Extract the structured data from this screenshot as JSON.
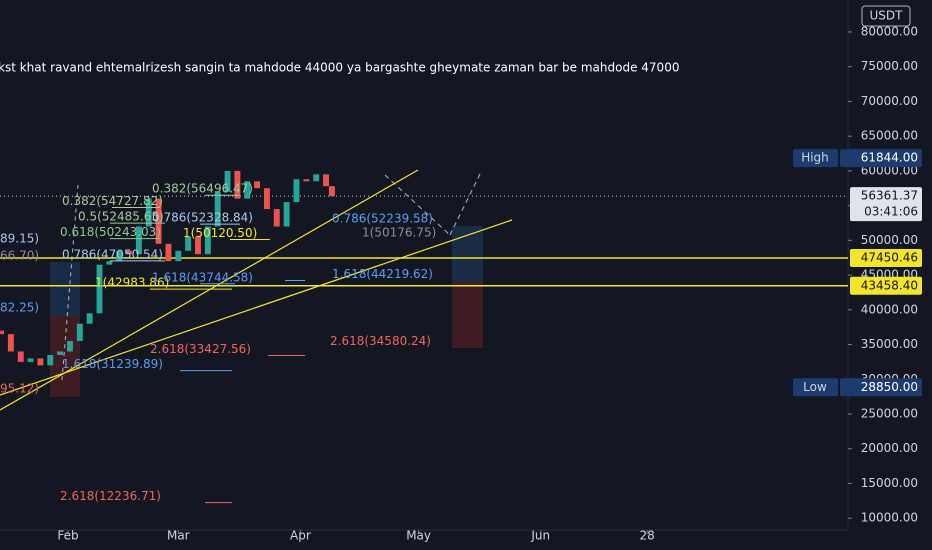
{
  "chart_data": {
    "type": "candlestick",
    "title": "kst khat ravand ehtemalrizesh sangin ta mahdode 44000 ya bargashte gheymate zaman bar be mahdode 47000",
    "currency": "USDT",
    "x": [
      15,
      17.5,
      20,
      22.5,
      25,
      27.5,
      30,
      32.5,
      35,
      37.5,
      40,
      42.5,
      45,
      47.5,
      50,
      52.5,
      55,
      57.5,
      60,
      62.5,
      65,
      67.5,
      70,
      72.5,
      75,
      77.5,
      80,
      82.5,
      85,
      87.5,
      90,
      92.5,
      95,
      97.5,
      99
    ],
    "open": [
      37000,
      36500,
      34000,
      32500,
      33000,
      32000,
      33500,
      34000,
      35500,
      38000,
      39500,
      46500,
      47000,
      48500,
      48000,
      52000,
      56000,
      49500,
      47000,
      48500,
      50500,
      48000,
      52000,
      57000,
      60000,
      56000,
      58500,
      57500,
      54500,
      52000,
      55500,
      58800,
      58500,
      59500,
      57800
    ],
    "high": {
      "label": "High",
      "value": 61844,
      "value_label": "61844.00"
    },
    "low": {
      "label": "Low",
      "value": 28850,
      "value_label": "28850.00"
    },
    "close": [
      36500,
      34000,
      32500,
      33000,
      32000,
      33500,
      34000,
      35500,
      38000,
      39500,
      46500,
      47000,
      48500,
      48000,
      52000,
      56000,
      49500,
      47000,
      48500,
      50500,
      48000,
      52000,
      57000,
      60000,
      56000,
      58500,
      57500,
      54500,
      52000,
      55500,
      58800,
      58500,
      59500,
      57800,
      56361.37
    ],
    "up_color": "#26a69a",
    "down_color": "#ef5350",
    "xlim": [
      14.74,
      230
    ],
    "ylim": [
      8300,
      84600
    ],
    "xticks": [
      {
        "value": 32,
        "label": "Feb"
      },
      {
        "value": 60,
        "label": "Mar"
      },
      {
        "value": 91,
        "label": "Apr"
      },
      {
        "value": 121,
        "label": "May"
      },
      {
        "value": 152,
        "label": "Jun"
      },
      {
        "value": 179,
        "label": "28"
      }
    ],
    "yticks": [
      {
        "value": 10000,
        "label": "10000.00"
      },
      {
        "value": 15000,
        "label": "15000.00"
      },
      {
        "value": 20000,
        "label": "20000.00"
      },
      {
        "value": 25000,
        "label": "25000.00"
      },
      {
        "value": 30000,
        "label": "30000.00"
      },
      {
        "value": 35000,
        "label": "35000.00"
      },
      {
        "value": 40000,
        "label": "40000.00"
      },
      {
        "value": 45000,
        "label": "45000.00"
      },
      {
        "value": 50000,
        "label": "50000.00"
      },
      {
        "value": 55000,
        "label": "55000.00"
      },
      {
        "value": 60000,
        "label": "60000.00"
      },
      {
        "value": 65000,
        "label": "65000.00"
      },
      {
        "value": 70000,
        "label": "70000.00"
      },
      {
        "value": 75000,
        "label": "75000.00"
      },
      {
        "value": 80000,
        "label": "80000.00"
      }
    ],
    "current": {
      "value": 56361.37,
      "value_label": "56361.37",
      "countdown": "03:41:06"
    },
    "hlines": {
      "values": [
        47450.46,
        43458.4
      ],
      "value_labels": [
        "47450.46",
        "43458.40"
      ],
      "color": "#f5e52a"
    },
    "fib_labels": [
      {
        "text": "0.382(54727.82)",
        "value": 54727.82,
        "color": "#a5c99a"
      },
      {
        "text": "0.5(52485.65)",
        "value": 52485.65,
        "color": "#a5c99a"
      },
      {
        "text": "0.618(50243.03)",
        "value": 50243.03,
        "color": "#8fc98f"
      },
      {
        "text": "0.786(47050.54)",
        "value": 47050.54,
        "color": "#a9c6ee"
      },
      {
        "text": "1(42983.86)",
        "value": 42983.86,
        "color": "#f5e52a"
      },
      {
        "text": "0.382(56496.47)",
        "value": 56496.47,
        "color": "#a5c99a"
      },
      {
        "text": "0.786(52328.84)",
        "value": 52328.84,
        "color": "#a9c6ee"
      },
      {
        "text": "1(50120.50)",
        "value": 50120.5,
        "color": "#f5e52a"
      },
      {
        "text": "1.618(43744.58)",
        "value": 43744.58,
        "color": "#5b9cf6"
      },
      {
        "text": "2.618(33427.56)",
        "value": 33427.56,
        "color": "#f0645a"
      },
      {
        "text": "1.618(31239.89)",
        "value": 31239.89,
        "color": "#5b9cf6"
      },
      {
        "text": "2.618(12236.71)",
        "value": 12236.71,
        "color": "#f0645a"
      },
      {
        "text": "0.786(52239.58)",
        "value": 52239.58,
        "color": "#5b9cf6"
      },
      {
        "text": "1(50176.75)",
        "value": 50176.75,
        "color": "#8a8e99"
      },
      {
        "text": "1.618(44219.62)",
        "value": 44219.62,
        "color": "#5b9cf6"
      },
      {
        "text": "2.618(34580.24)",
        "value": 34580.24,
        "color": "#f0645a"
      },
      {
        "text": "89.15)",
        "color": "#a9c6ee"
      },
      {
        "text": "66.70)",
        "color": "#8a8e99"
      },
      {
        "text": "82.25)",
        "color": "#5b9cf6"
      },
      {
        "text": "95.12)",
        "color": "#f0645a"
      }
    ]
  }
}
